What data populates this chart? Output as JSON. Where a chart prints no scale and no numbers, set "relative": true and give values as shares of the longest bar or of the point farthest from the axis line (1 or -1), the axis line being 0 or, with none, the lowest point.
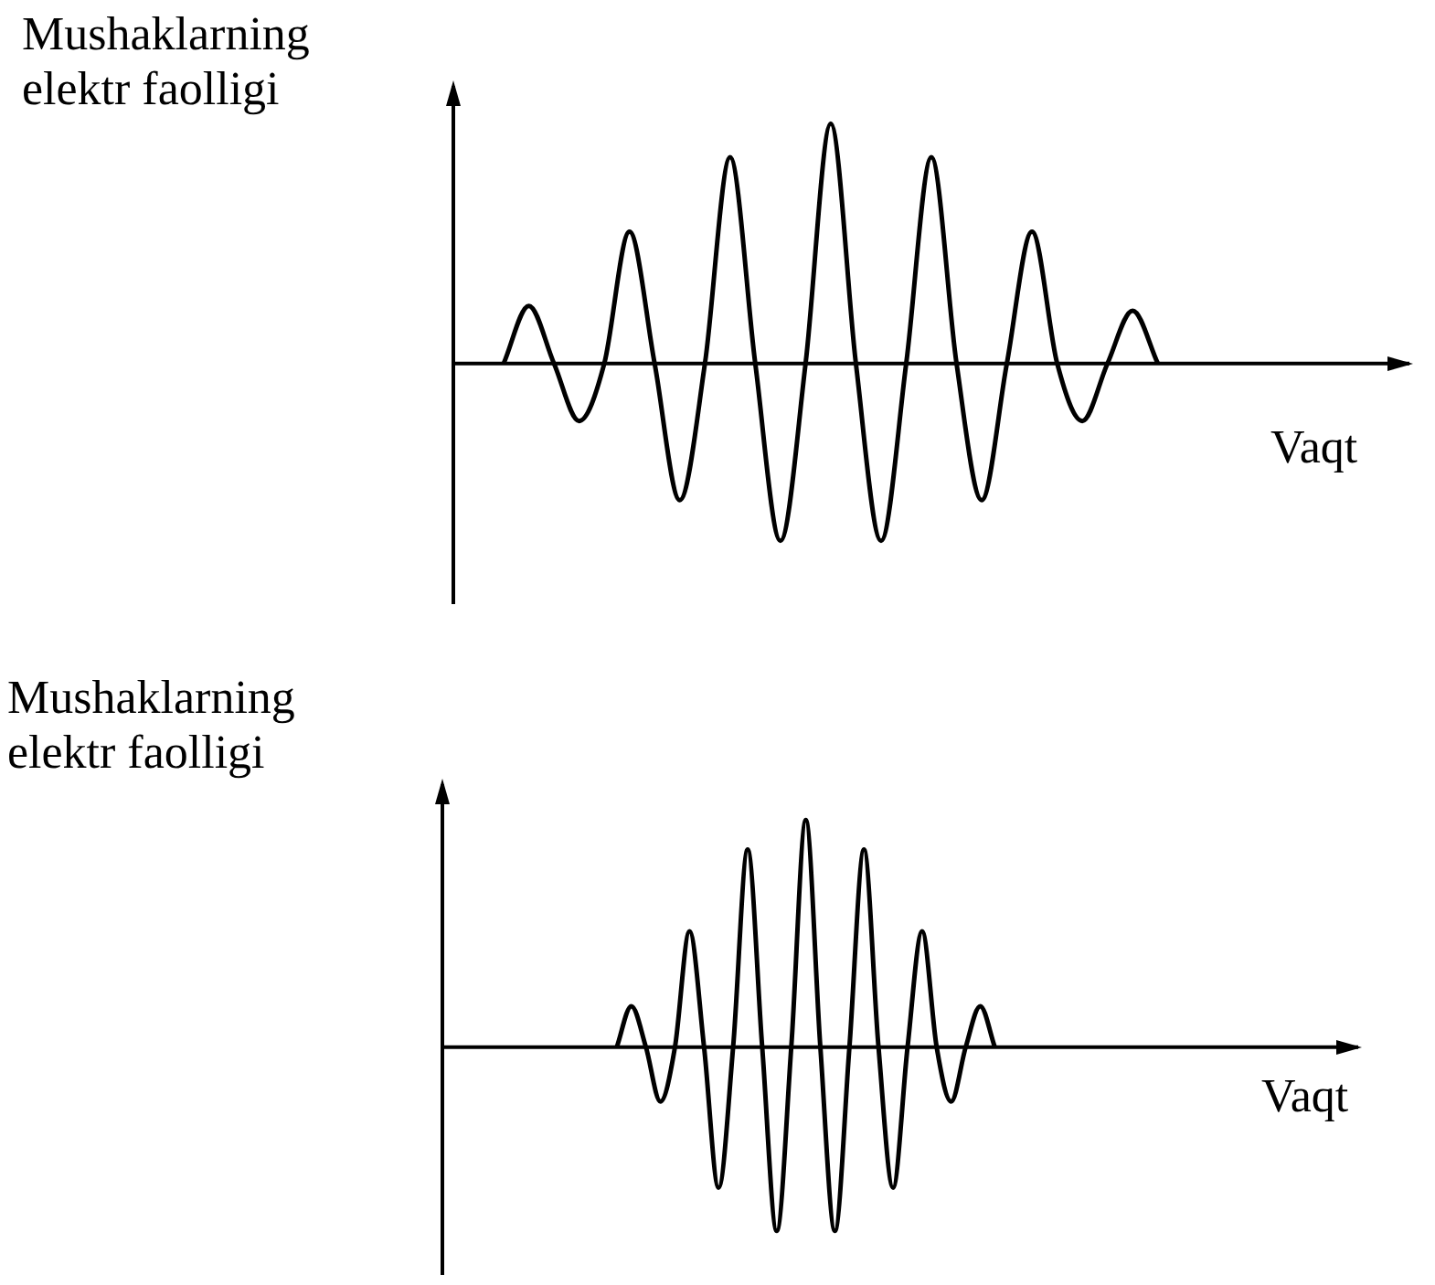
{
  "chart_data": [
    {
      "type": "line",
      "relative": true,
      "marker": "none",
      "xlabel": "Vaqt",
      "ylabel": "Mushaklarning elektr faolligi",
      "categories": [
        null,
        null,
        null,
        null,
        null,
        null,
        null,
        null,
        null,
        null,
        null,
        null,
        null,
        null,
        null,
        null,
        null,
        null,
        null,
        null,
        null,
        null,
        null,
        null,
        null,
        null,
        null,
        null,
        null,
        null,
        null,
        null,
        null,
        null,
        null,
        null,
        null,
        null,
        null
      ],
      "series": [
        {
          "color": "#000000",
          "values": [
            null,
            null,
            0,
            0.24,
            0,
            -0.24,
            0,
            0.55,
            0,
            -0.57,
            0,
            0.86,
            0,
            -0.74,
            0,
            1,
            0,
            -0.74,
            0,
            0.86,
            0,
            -0.57,
            0,
            0.55,
            0,
            -0.24,
            0,
            0.22,
            0,
            null,
            null,
            null,
            null,
            null,
            null,
            null,
            null,
            null,
            null
          ]
        }
      ]
    },
    {
      "type": "line",
      "relative": true,
      "marker": "none",
      "xlabel": "Vaqt",
      "ylabel": "Mushaklarning elektr faolligi",
      "categories": [
        null,
        null,
        null,
        null,
        null,
        null,
        null,
        null,
        null,
        null,
        null,
        null,
        null,
        null,
        null,
        null,
        null,
        null,
        null,
        null,
        null,
        null,
        null,
        null,
        null,
        null,
        null,
        null,
        null,
        null,
        null,
        null,
        null,
        null,
        null,
        null,
        null,
        null,
        null,
        null,
        null,
        null,
        null,
        null,
        null,
        null,
        null,
        null,
        null,
        null,
        null,
        null,
        null,
        null,
        null,
        null,
        null,
        null,
        null,
        null,
        null,
        null,
        null,
        null
      ],
      "series": [
        {
          "color": "#000000",
          "values": [
            null,
            null,
            null,
            null,
            null,
            null,
            null,
            null,
            null,
            null,
            null,
            null,
            0,
            0.18,
            0,
            -0.24,
            0,
            0.51,
            0,
            -0.62,
            0,
            0.87,
            0,
            -0.81,
            0,
            1,
            0,
            -0.81,
            0,
            0.87,
            0,
            -0.62,
            0,
            0.51,
            0,
            -0.24,
            0,
            0.18,
            0,
            null,
            null,
            null,
            null,
            null,
            null,
            null,
            null,
            null,
            null,
            null,
            null,
            null,
            null,
            null,
            null,
            null,
            null,
            null,
            null,
            null,
            null,
            null,
            null,
            null
          ]
        }
      ]
    }
  ]
}
